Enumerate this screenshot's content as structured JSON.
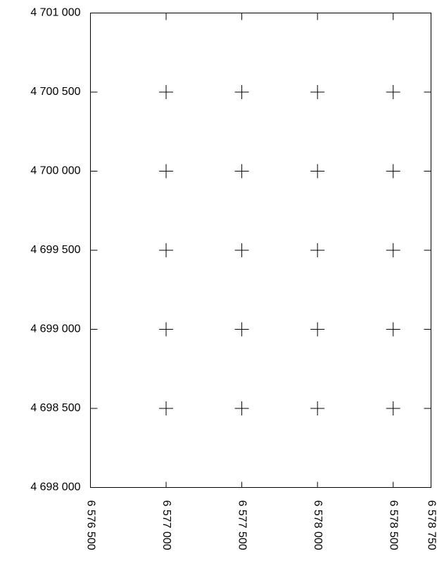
{
  "chart_data": {
    "type": "graticule",
    "xlim": [
      6576500,
      6578750
    ],
    "ylim": [
      4698000,
      4701000
    ],
    "xticks": [
      {
        "value": 6576500,
        "label": "6 576 500"
      },
      {
        "value": 6577000,
        "label": "6 577 000"
      },
      {
        "value": 6577500,
        "label": "6 577 500"
      },
      {
        "value": 6578000,
        "label": "6 578 000"
      },
      {
        "value": 6578500,
        "label": "6 578 500"
      },
      {
        "value": 6578750,
        "label": "6 578 750"
      }
    ],
    "yticks": [
      {
        "value": 4698000,
        "label": "4 698 000"
      },
      {
        "value": 4698500,
        "label": "4 698 500"
      },
      {
        "value": 4699000,
        "label": "4 699 000"
      },
      {
        "value": 4699500,
        "label": "4 699 500"
      },
      {
        "value": 4700000,
        "label": "4 700 000"
      },
      {
        "value": 4700500,
        "label": "4 700 500"
      },
      {
        "value": 4701000,
        "label": "4 701 000"
      }
    ],
    "crosses": true,
    "color": "#000000"
  }
}
